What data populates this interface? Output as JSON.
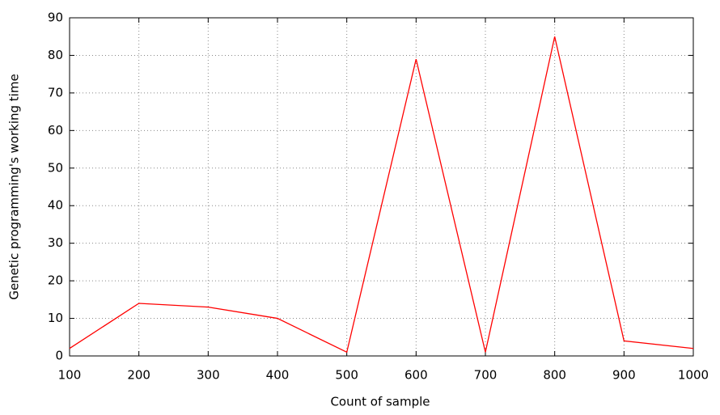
{
  "chart_data": {
    "type": "line",
    "xlabel": "Count of sample",
    "ylabel": "Genetic programming's working time",
    "x": [
      100,
      200,
      300,
      400,
      500,
      600,
      700,
      800,
      900,
      1000
    ],
    "series": [
      {
        "color": "#ff0000",
        "values": [
          2,
          14,
          13,
          10,
          1,
          79,
          1,
          85,
          4,
          2
        ]
      }
    ],
    "xlim": [
      100,
      1000
    ],
    "xticks": [
      100,
      200,
      300,
      400,
      500,
      600,
      700,
      800,
      900,
      1000
    ],
    "ylim": [
      0,
      90
    ],
    "yticks": [
      0,
      10,
      20,
      30,
      40,
      50,
      60,
      70,
      80,
      90
    ],
    "grid": true
  }
}
